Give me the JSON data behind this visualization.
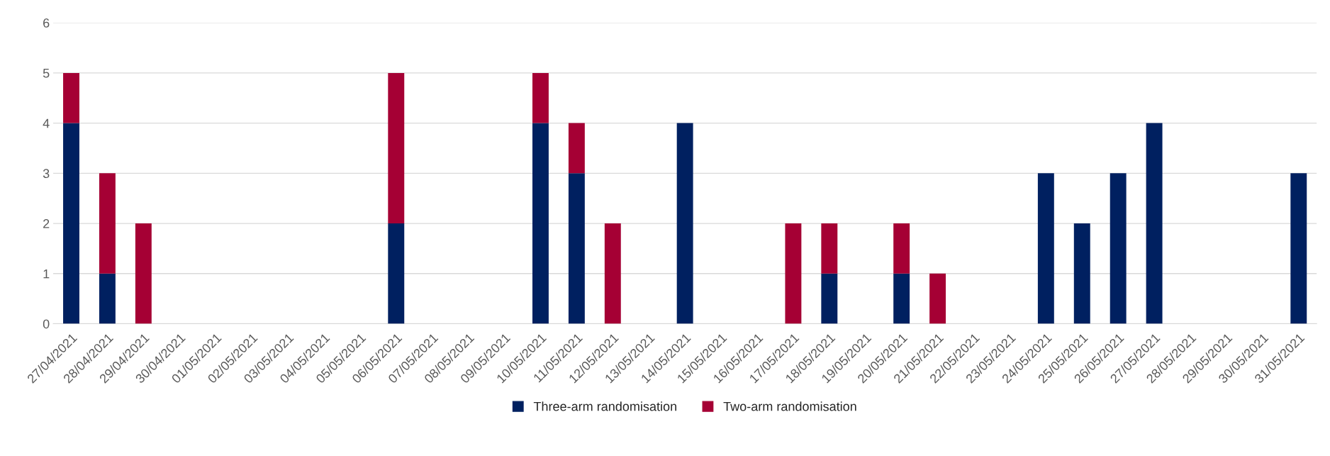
{
  "chart_data": {
    "type": "bar",
    "stacked": true,
    "categories": [
      "27/04/2021",
      "28/04/2021",
      "29/04/2021",
      "30/04/2021",
      "01/05/2021",
      "02/05/2021",
      "03/05/2021",
      "04/05/2021",
      "05/05/2021",
      "06/05/2021",
      "07/05/2021",
      "08/05/2021",
      "09/05/2021",
      "10/05/2021",
      "11/05/2021",
      "12/05/2021",
      "13/05/2021",
      "14/05/2021",
      "15/05/2021",
      "16/05/2021",
      "17/05/2021",
      "18/05/2021",
      "19/05/2021",
      "20/05/2021",
      "21/05/2021",
      "22/05/2021",
      "23/05/2021",
      "24/05/2021",
      "25/05/2021",
      "26/05/2021",
      "27/05/2021",
      "28/05/2021",
      "29/05/2021",
      "30/05/2021",
      "31/05/2021"
    ],
    "series": [
      {
        "name": "Three-arm randomisation",
        "color": "#002060",
        "values": [
          4,
          1,
          0,
          0,
          0,
          0,
          0,
          0,
          0,
          2,
          0,
          0,
          0,
          4,
          3,
          0,
          0,
          4,
          0,
          0,
          0,
          1,
          0,
          1,
          0,
          0,
          0,
          3,
          2,
          3,
          4,
          0,
          0,
          0,
          3
        ]
      },
      {
        "name": "Two-arm randomisation",
        "color": "#a50034",
        "values": [
          1,
          2,
          2,
          0,
          0,
          0,
          0,
          0,
          0,
          3,
          0,
          0,
          0,
          1,
          1,
          2,
          0,
          0,
          0,
          0,
          2,
          1,
          0,
          1,
          1,
          0,
          0,
          0,
          0,
          0,
          0,
          0,
          0,
          0,
          0
        ]
      }
    ],
    "ylim": [
      0,
      6
    ],
    "yticks": [
      0,
      1,
      2,
      3,
      4,
      5,
      6
    ],
    "grid": "y",
    "legend": "bottom"
  }
}
